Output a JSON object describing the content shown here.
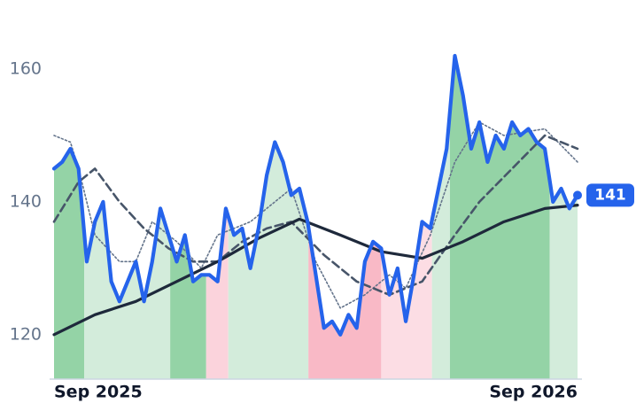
{
  "chart_data": {
    "type": "line",
    "xlim": [
      0,
      64
    ],
    "ylim": [
      113.3,
      165
    ],
    "xticks": [
      {
        "value": 0,
        "label": "Sep 2025"
      },
      {
        "value": 64,
        "label": "Sep 2026"
      }
    ],
    "yticks": [
      120,
      140,
      160
    ],
    "last_value": 141,
    "regions": [
      {
        "start": 0,
        "end": 3.7,
        "color": "#94d3a6"
      },
      {
        "start": 3.7,
        "end": 14.2,
        "color": "#d3ecdb"
      },
      {
        "start": 14.2,
        "end": 18.6,
        "color": "#94d3a6"
      },
      {
        "start": 18.6,
        "end": 21.3,
        "color": "#fbd3dc"
      },
      {
        "start": 21.3,
        "end": 31.1,
        "color": "#d3ecdb"
      },
      {
        "start": 31.1,
        "end": 40,
        "color": "#f9b9c6"
      },
      {
        "start": 40,
        "end": 46.2,
        "color": "#fcdde4"
      },
      {
        "start": 46.2,
        "end": 48.4,
        "color": "#d3ecdb"
      },
      {
        "start": 48.4,
        "end": 60.6,
        "color": "#94d3a6"
      },
      {
        "start": 60.6,
        "end": 64,
        "color": "#d3ecdb"
      }
    ],
    "series": [
      {
        "style": "dotted",
        "color": "#64748b",
        "x": [
          0,
          2,
          3,
          5,
          8,
          10,
          12,
          15,
          18,
          20,
          24,
          27,
          29,
          32,
          35,
          38,
          41,
          43,
          46,
          49,
          52,
          55,
          60,
          64
        ],
        "values": [
          150,
          149,
          145,
          135,
          131,
          131,
          137,
          134,
          130,
          135,
          137,
          140,
          142,
          131,
          124,
          126,
          129,
          127,
          135,
          146,
          152,
          150,
          151,
          146
        ]
      },
      {
        "style": "dashed",
        "color": "#475569",
        "x": [
          0,
          3,
          5,
          8,
          11,
          14,
          17,
          20,
          23,
          26,
          29,
          33,
          37,
          41,
          45,
          49,
          52,
          56,
          60,
          62,
          64
        ],
        "values": [
          137,
          143,
          145,
          140,
          136,
          133,
          131,
          131,
          134,
          136,
          137,
          132,
          128,
          126,
          128,
          135,
          140,
          145,
          150,
          149,
          148
        ]
      },
      {
        "style": "solid",
        "color": "#1e293b",
        "x": [
          0,
          5,
          10,
          15,
          20,
          25,
          30,
          35,
          40,
          45,
          50,
          55,
          60,
          64
        ],
        "values": [
          120,
          123,
          125,
          128,
          131,
          134.5,
          137.4,
          135,
          132.5,
          131.5,
          134,
          137,
          139,
          139.5
        ]
      },
      {
        "style": "price",
        "color": "#2563eb",
        "x": [
          0,
          1,
          2,
          3,
          4,
          5,
          6,
          7,
          8,
          9,
          10,
          11,
          12,
          13,
          14,
          15,
          16,
          17,
          18,
          19,
          20,
          21,
          22,
          23,
          24,
          25,
          26,
          27,
          28,
          29,
          30,
          31,
          32,
          33,
          34,
          35,
          36,
          37,
          38,
          39,
          40,
          41,
          42,
          43,
          44,
          45,
          46,
          47,
          48,
          49,
          50,
          51,
          52,
          53,
          54,
          55,
          56,
          57,
          58,
          59,
          60,
          61,
          62,
          63,
          64
        ],
        "values": [
          145,
          146,
          148,
          145,
          131,
          137,
          140,
          128,
          125,
          128,
          131,
          125,
          131,
          139,
          135,
          131,
          135,
          128,
          129,
          129,
          128,
          139,
          135,
          136,
          130,
          136,
          144,
          149,
          146,
          141,
          142,
          137,
          129,
          121,
          122,
          120,
          123,
          121,
          131,
          134,
          133,
          126,
          130,
          122,
          129,
          137,
          136,
          142,
          148,
          162,
          156,
          148,
          152,
          146,
          150,
          148,
          152,
          150,
          151,
          149,
          148,
          140,
          142,
          139,
          141
        ]
      }
    ]
  }
}
